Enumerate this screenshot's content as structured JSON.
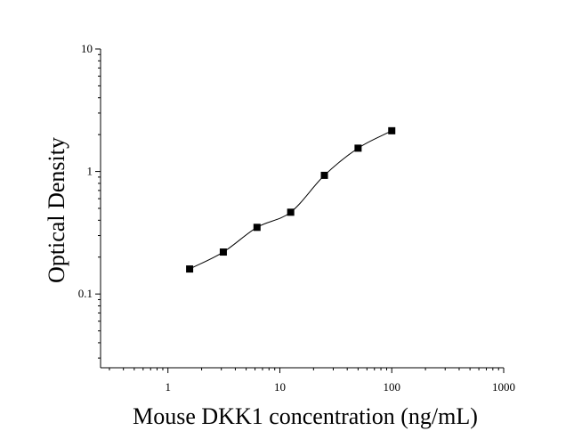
{
  "chart_data": {
    "type": "scatter",
    "title": "",
    "xlabel": "Mouse DKK1 concentration (ng/mL)",
    "ylabel": "Optical Density",
    "x_scale": "log",
    "y_scale": "log",
    "xlim": [
      0.25,
      1000
    ],
    "ylim": [
      0.025,
      10
    ],
    "x_ticks": [
      1,
      10,
      100,
      1000
    ],
    "x_tick_labels": [
      "1",
      "10",
      "100",
      "1000"
    ],
    "y_ticks": [
      0.1,
      1,
      10
    ],
    "y_tick_labels": [
      "0.1",
      "1",
      "10"
    ],
    "grid": false,
    "legend": "none",
    "series": [
      {
        "marker": "square",
        "color": "#000000",
        "x": [
          1.5625,
          3.125,
          6.25,
          12.5,
          25,
          50,
          100
        ],
        "y": [
          0.16,
          0.22,
          0.35,
          0.465,
          0.93,
          1.55,
          2.15
        ]
      }
    ],
    "fit_curve": {
      "type": "four-parameter logistic",
      "color": "#000000",
      "x_range": [
        1.5625,
        100
      ]
    }
  }
}
